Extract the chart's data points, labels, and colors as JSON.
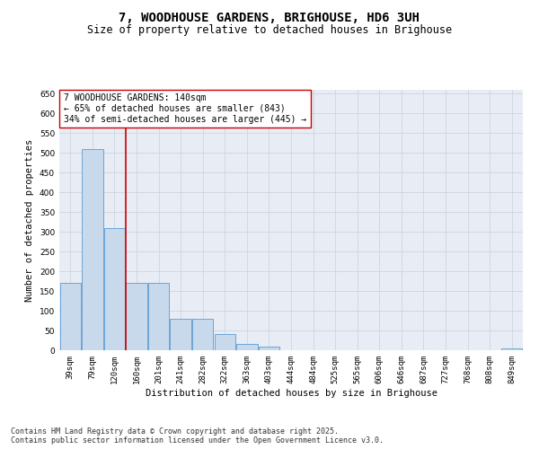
{
  "title": "7, WOODHOUSE GARDENS, BRIGHOUSE, HD6 3UH",
  "subtitle": "Size of property relative to detached houses in Brighouse",
  "xlabel": "Distribution of detached houses by size in Brighouse",
  "ylabel": "Number of detached properties",
  "bar_color": "#c8d9ec",
  "bar_edge_color": "#5a9bd4",
  "vline_color": "#cc0000",
  "annotation_text": "7 WOODHOUSE GARDENS: 140sqm\n← 65% of detached houses are smaller (843)\n34% of semi-detached houses are larger (445) →",
  "annotation_box_color": "#ffffff",
  "annotation_box_edge": "#cc0000",
  "categories": [
    "39sqm",
    "79sqm",
    "120sqm",
    "160sqm",
    "201sqm",
    "241sqm",
    "282sqm",
    "322sqm",
    "363sqm",
    "403sqm",
    "444sqm",
    "484sqm",
    "525sqm",
    "565sqm",
    "606sqm",
    "646sqm",
    "687sqm",
    "727sqm",
    "768sqm",
    "808sqm",
    "849sqm"
  ],
  "values": [
    170,
    510,
    310,
    170,
    170,
    80,
    80,
    40,
    15,
    8,
    0,
    0,
    0,
    0,
    0,
    0,
    0,
    0,
    0,
    0,
    5
  ],
  "ylim": [
    0,
    660
  ],
  "yticks": [
    0,
    50,
    100,
    150,
    200,
    250,
    300,
    350,
    400,
    450,
    500,
    550,
    600,
    650
  ],
  "grid_color": "#ccd4e0",
  "background_color": "#e8edf5",
  "footnote": "Contains HM Land Registry data © Crown copyright and database right 2025.\nContains public sector information licensed under the Open Government Licence v3.0.",
  "title_fontsize": 10,
  "subtitle_fontsize": 8.5,
  "axis_label_fontsize": 7.5,
  "tick_fontsize": 6.5,
  "annotation_fontsize": 7,
  "footnote_fontsize": 6
}
